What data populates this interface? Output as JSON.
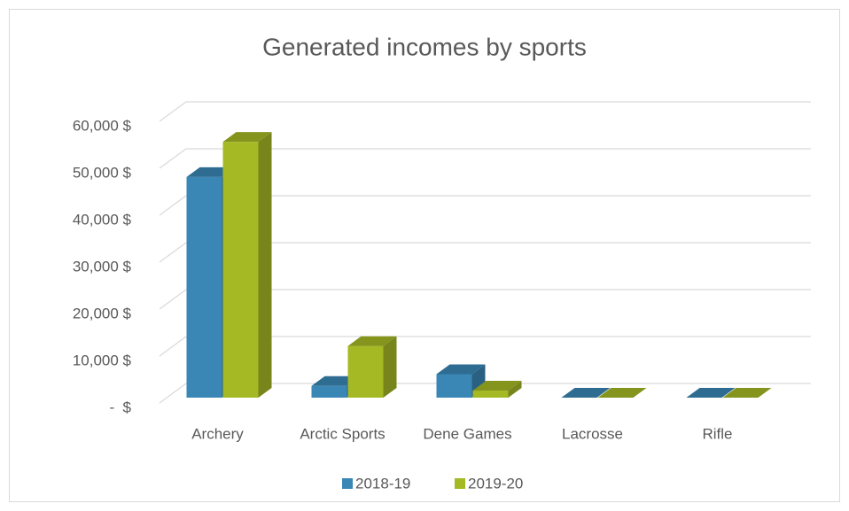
{
  "chart_data": {
    "type": "bar3d",
    "title": "Generated incomes by sports",
    "categories": [
      "Archery",
      "Arctic Sports",
      "Dene Games",
      "Lacrosse",
      "Rifle"
    ],
    "series": [
      {
        "name": "2018-19",
        "color": "#3a87b6",
        "values": [
          47000,
          2500,
          5000,
          0,
          0
        ]
      },
      {
        "name": "2019-20",
        "color": "#a5b924",
        "values": [
          54500,
          11000,
          1500,
          0,
          0
        ]
      }
    ],
    "ylim": [
      0,
      60000
    ],
    "yticks": [
      {
        "value": 0,
        "label": "-  $"
      },
      {
        "value": 10000,
        "label": "10,000 $"
      },
      {
        "value": 20000,
        "label": "20,000 $"
      },
      {
        "value": 30000,
        "label": "30,000 $"
      },
      {
        "value": 40000,
        "label": "40,000 $"
      },
      {
        "value": 50000,
        "label": "50,000 $"
      },
      {
        "value": 60000,
        "label": "60,000 $"
      }
    ],
    "grid": true,
    "legend": "bottom"
  }
}
